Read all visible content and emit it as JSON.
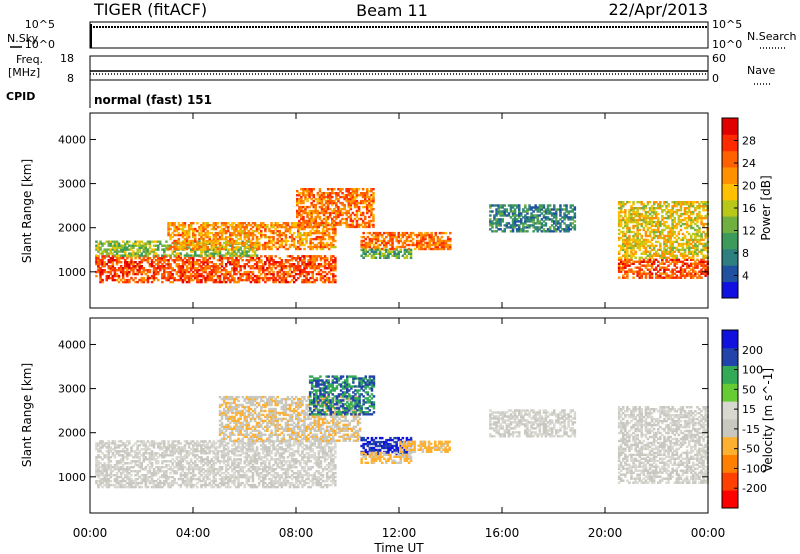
{
  "header": {
    "title": "TIGER (fitACF)",
    "beam": "Beam 11",
    "date": "22/Apr/2013"
  },
  "nsky_panel": {
    "left_label": "N.Sky",
    "right_label": "N.Search",
    "left_ticks": [
      "10^5",
      "10^0"
    ],
    "right_ticks": [
      "10^5",
      "10^0"
    ]
  },
  "freq_panel": {
    "left_label_line1": "Freq.",
    "left_label_line2": "[MHz]",
    "right_label": "Nave",
    "left_ticks": [
      "18",
      "8"
    ],
    "right_ticks": [
      "60",
      "0"
    ]
  },
  "cpid": {
    "label": "CPID",
    "value": "normal (fast) 151"
  },
  "colors": {
    "power": [
      "#1010e0",
      "#2050a0",
      "#2e7f7f",
      "#3c9a5a",
      "#70b040",
      "#b8c818",
      "#ffc000",
      "#ff9000",
      "#ff6000",
      "#ff2a00",
      "#e00000"
    ],
    "velocity": [
      "#ff0000",
      "#ff4000",
      "#ff8000",
      "#ffb030",
      "#c8c8c0",
      "#d8d8d0",
      "#66cc33",
      "#33aa55",
      "#2244aa",
      "#1111dd"
    ]
  },
  "chart_data": [
    {
      "type": "heatmap",
      "parameter": "Power",
      "ylabel": "Slant Range [km]",
      "colorbar_label": "Power [dB]",
      "colorbar_ticks": [
        "4",
        "8",
        "12",
        "16",
        "20",
        "24",
        "28"
      ],
      "colorbar_range": [
        0,
        32
      ],
      "xlim_hours": [
        0,
        24
      ],
      "ylim_km": [
        180,
        4600
      ],
      "y_ticks": [
        1000,
        2000,
        3000,
        4000
      ],
      "x_ticks": [
        "00:00",
        "04:00",
        "08:00",
        "12:00",
        "16:00",
        "20:00",
        "00:00"
      ],
      "echo_regions": [
        {
          "t0": 0.2,
          "t1": 9.5,
          "r0": 750,
          "r1": 1350,
          "power_db": 26
        },
        {
          "t0": 0.2,
          "t1": 6.5,
          "r0": 1350,
          "r1": 1700,
          "power_db": 14
        },
        {
          "t0": 3.0,
          "t1": 9.5,
          "r0": 1500,
          "r1": 2100,
          "power_db": 22
        },
        {
          "t0": 8.0,
          "t1": 11.0,
          "r0": 2000,
          "r1": 2900,
          "power_db": 24
        },
        {
          "t0": 10.5,
          "t1": 14.0,
          "r0": 1500,
          "r1": 1900,
          "power_db": 24
        },
        {
          "t0": 10.5,
          "t1": 12.5,
          "r0": 1300,
          "r1": 1500,
          "power_db": 12
        },
        {
          "t0": 15.5,
          "t1": 18.8,
          "r0": 1900,
          "r1": 2500,
          "power_db": 8
        },
        {
          "t0": 20.5,
          "t1": 24.0,
          "r0": 850,
          "r1": 1300,
          "power_db": 26
        },
        {
          "t0": 20.5,
          "t1": 24.0,
          "r0": 1300,
          "r1": 2600,
          "power_db": 18
        }
      ]
    },
    {
      "type": "heatmap",
      "parameter": "Velocity",
      "ylabel": "Slant Range [km]",
      "xlabel": "Time UT",
      "colorbar_label": "Velocity [m s^-1]",
      "colorbar_ticks": [
        "-200",
        "-100",
        "-50",
        "-15",
        "15",
        "50",
        "100",
        "200"
      ],
      "colorbar_range": [
        -250,
        250
      ],
      "xlim_hours": [
        0,
        24
      ],
      "ylim_km": [
        180,
        4600
      ],
      "y_ticks": [
        1000,
        2000,
        3000,
        4000
      ],
      "x_ticks": [
        "00:00",
        "04:00",
        "08:00",
        "12:00",
        "16:00",
        "20:00",
        "00:00"
      ],
      "echo_regions": [
        {
          "t0": 0.2,
          "t1": 9.5,
          "r0": 750,
          "r1": 1800,
          "velocity": 0
        },
        {
          "t0": 5.0,
          "t1": 10.5,
          "r0": 1800,
          "r1": 2800,
          "velocity": -40
        },
        {
          "t0": 8.5,
          "t1": 11.0,
          "r0": 2400,
          "r1": 3300,
          "velocity": 150
        },
        {
          "t0": 10.5,
          "t1": 12.5,
          "r0": 1500,
          "r1": 1900,
          "velocity": 200
        },
        {
          "t0": 12.0,
          "t1": 14.0,
          "r0": 1550,
          "r1": 1800,
          "velocity": -70
        },
        {
          "t0": 10.5,
          "t1": 12.5,
          "r0": 1300,
          "r1": 1550,
          "velocity": -60
        },
        {
          "t0": 15.5,
          "t1": 18.8,
          "r0": 1900,
          "r1": 2500,
          "velocity": 0
        },
        {
          "t0": 20.5,
          "t1": 24.0,
          "r0": 850,
          "r1": 2600,
          "velocity": 0
        }
      ]
    }
  ]
}
